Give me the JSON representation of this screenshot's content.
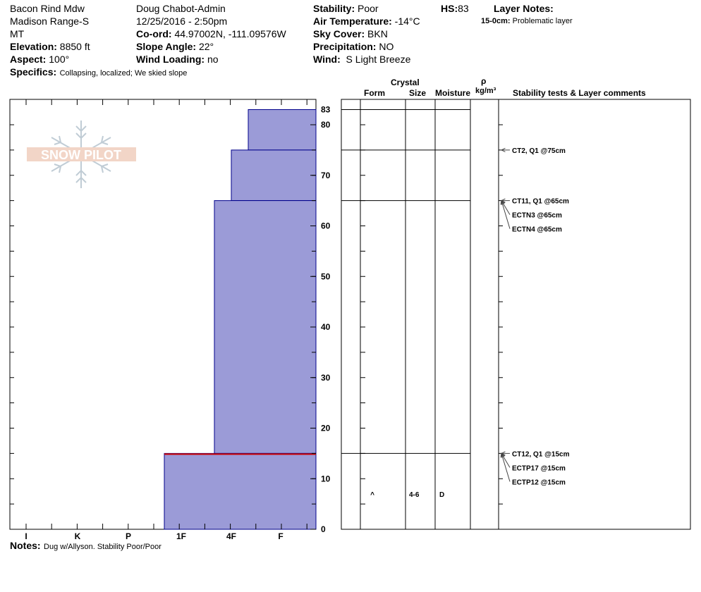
{
  "header": {
    "site": "Bacon Rind Mdw",
    "range": "Madison Range-S",
    "state": "MT",
    "elevation_label": "Elevation:",
    "elevation": "8850 ft",
    "aspect_label": "Aspect:",
    "aspect": "100°",
    "specifics_label": "Specifics:",
    "specifics": "Collapsing, localized;  We skied slope",
    "observer": "Doug Chabot-Admin",
    "datetime": "12/25/2016 - 2:50pm",
    "coord_label": "Co-ord:",
    "coord": "44.97002N, -111.09576W",
    "slope_label": "Slope Angle:",
    "slope": "22°",
    "wind_loading_label": "Wind Loading:",
    "wind_loading": "no",
    "stability_label": "Stability:",
    "stability": "Poor",
    "air_temp_label": "Air Temperature:",
    "air_temp": "-14°C",
    "sky_label": "Sky Cover:",
    "sky": "BKN",
    "precip_label": "Precipitation:",
    "precip": "NO",
    "wind_label": "Wind:",
    "wind": "S Light Breeze",
    "hs_label": "HS:",
    "hs": "83",
    "layer_notes_label": "Layer Notes:",
    "layer_notes_depth": "15-0cm:",
    "layer_notes_text": "Problematic layer"
  },
  "logo_text": "SNOW PILOT",
  "notes_label": "Notes:",
  "notes": "Dug w/Allyson. Stability Poor/Poor",
  "columns": {
    "crystal": "Crystal",
    "form": "Form",
    "size": "Size",
    "moisture": "Moisture",
    "rho": "ρ",
    "density_unit": "kg/m³",
    "comments": "Stability tests & Layer comments"
  },
  "colors": {
    "layer_fill": "#9b9bd7",
    "layer_edge": "#00008b",
    "weak_layer": "#cc0000"
  },
  "chart_data": {
    "type": "bar",
    "orientation": "horizontal",
    "ylim": [
      0,
      85
    ],
    "y_ticks": [
      "0",
      "10",
      "20",
      "30",
      "40",
      "50",
      "60",
      "70",
      "80"
    ],
    "hs_tick": "83",
    "hardness_scale": [
      "I",
      "K",
      "P",
      "1F",
      "4F",
      "F"
    ],
    "layers": [
      {
        "top": 83,
        "bottom": 75,
        "hardness": "4F-"
      },
      {
        "top": 75,
        "bottom": 65,
        "hardness": "4F"
      },
      {
        "top": 65,
        "bottom": 15,
        "hardness": "4F+"
      },
      {
        "top": 15,
        "bottom": 0,
        "hardness": "1F+"
      }
    ],
    "weak_layer_depth": 15,
    "grain_rows": [
      {
        "depth": 7,
        "form": "^",
        "size": "4-6",
        "moisture": "D"
      }
    ],
    "tests": [
      {
        "depth": 75,
        "text": "CT2, Q1 @75cm"
      },
      {
        "depth": 65,
        "text": "CT11, Q1 @65cm"
      },
      {
        "depth": 65,
        "text": "ECTN3 @65cm"
      },
      {
        "depth": 65,
        "text": "ECTN4 @65cm"
      },
      {
        "depth": 15,
        "text": "CT12, Q1 @15cm"
      },
      {
        "depth": 15,
        "text": "ECTP17 @15cm"
      },
      {
        "depth": 15,
        "text": "ECTP12 @15cm"
      }
    ]
  }
}
